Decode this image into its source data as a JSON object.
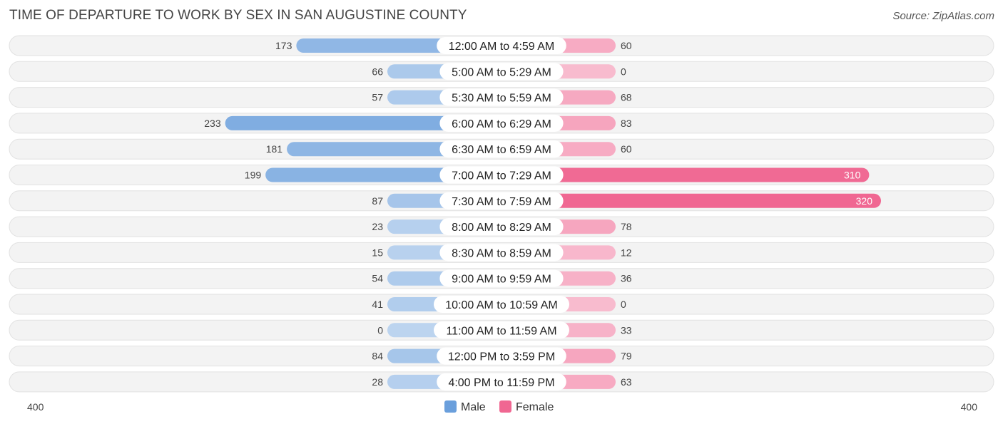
{
  "title": "TIME OF DEPARTURE TO WORK BY SEX IN SAN AUGUSTINE COUNTY",
  "source": "Source: ZipAtlas.com",
  "chart_data": {
    "type": "bar",
    "orientation": "horizontal-diverging",
    "categories": [
      "12:00 AM to 4:59 AM",
      "5:00 AM to 5:29 AM",
      "5:30 AM to 5:59 AM",
      "6:00 AM to 6:29 AM",
      "6:30 AM to 6:59 AM",
      "7:00 AM to 7:29 AM",
      "7:30 AM to 7:59 AM",
      "8:00 AM to 8:29 AM",
      "8:30 AM to 8:59 AM",
      "9:00 AM to 9:59 AM",
      "10:00 AM to 10:59 AM",
      "11:00 AM to 11:59 AM",
      "12:00 PM to 3:59 PM",
      "4:00 PM to 11:59 PM"
    ],
    "series": [
      {
        "name": "Male",
        "color": "#6a9fdc",
        "values": [
          173,
          66,
          57,
          233,
          181,
          199,
          87,
          23,
          15,
          54,
          41,
          0,
          84,
          28
        ]
      },
      {
        "name": "Female",
        "color": "#f06792",
        "values": [
          60,
          0,
          68,
          83,
          60,
          310,
          320,
          78,
          12,
          36,
          0,
          33,
          79,
          63
        ]
      }
    ],
    "xlim": [
      -400,
      400
    ],
    "axis_labels": {
      "left": "400",
      "right": "400"
    },
    "legend_placement": "bottom-center"
  }
}
